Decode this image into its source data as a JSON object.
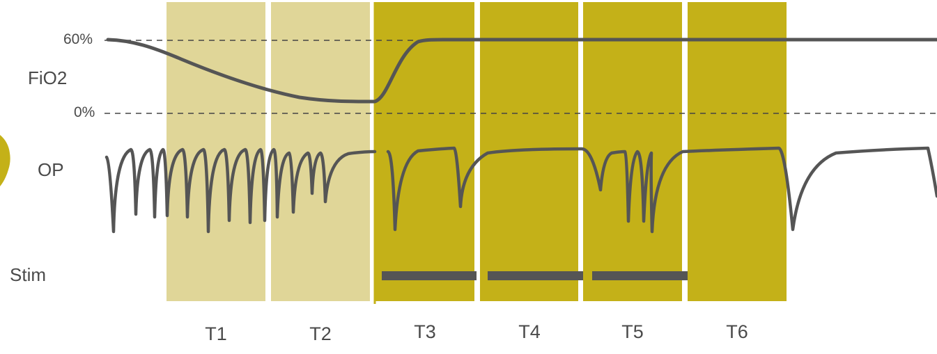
{
  "rows": {
    "fio2": "FiO2",
    "op": "OP",
    "stim": "Stim"
  },
  "fio2_ticks": {
    "high": "60%",
    "low": "0%"
  },
  "trials": [
    "T1",
    "T2",
    "T3",
    "T4",
    "T5",
    "T6"
  ],
  "colors": {
    "hypoxia_light": "#e0d698",
    "stim_dark": "#c4b118",
    "trace": "#555555",
    "dashed": "#444444",
    "icon": "#c4b118"
  },
  "stim_trials": [
    "T3",
    "T4",
    "T5"
  ]
}
